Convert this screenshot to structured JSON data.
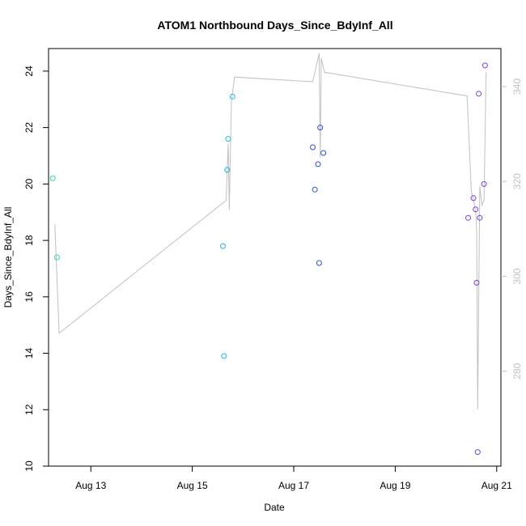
{
  "chart_data": {
    "type": "scatter",
    "title": "ATOM1 Northbound Days_Since_BdyInf_All",
    "xlabel": "Date",
    "ylabel": "Days_Since_BdyInf_All",
    "x_ticks": [
      "Aug 13",
      "Aug 15",
      "Aug 17",
      "Aug 19",
      "Aug 21"
    ],
    "x_tick_dates": [
      "2024-08-13",
      "2024-08-15",
      "2024-08-17",
      "2024-08-19",
      "2024-08-21"
    ],
    "xlim": [
      "2024-08-12T04:00",
      "2024-08-21T02:00"
    ],
    "ylim": [
      10,
      24.8
    ],
    "y_ticks": [
      10,
      12,
      14,
      16,
      18,
      20,
      22,
      24
    ],
    "y2lim": [
      260,
      348
    ],
    "y2_ticks": [
      280,
      300,
      320,
      340
    ],
    "grid": false,
    "colors": {
      "axis": "#000000",
      "secondary_line": "#c0c0c0",
      "secondary_axis": "#c0c0c0"
    },
    "points": [
      {
        "x": "2024-08-12T06:00",
        "y": 20.2,
        "color": "#2edb9e"
      },
      {
        "x": "2024-08-12T08:00",
        "y": 17.4,
        "color": "#2edb9e"
      },
      {
        "x": "2024-08-15T14:30",
        "y": 17.8,
        "color": "#22b7e6"
      },
      {
        "x": "2024-08-15T15:00",
        "y": 13.9,
        "color": "#22b7e6"
      },
      {
        "x": "2024-08-15T16:30",
        "y": 20.5,
        "color": "#22b7e6"
      },
      {
        "x": "2024-08-15T17:00",
        "y": 21.6,
        "color": "#22b7e6"
      },
      {
        "x": "2024-08-15T19:00",
        "y": 23.1,
        "color": "#22b7e6"
      },
      {
        "x": "2024-08-17T09:00",
        "y": 21.3,
        "color": "#2a4fe0"
      },
      {
        "x": "2024-08-17T10:00",
        "y": 19.8,
        "color": "#2a4fe0"
      },
      {
        "x": "2024-08-17T11:30",
        "y": 20.7,
        "color": "#2a4fe0"
      },
      {
        "x": "2024-08-17T12:00",
        "y": 17.2,
        "color": "#2a4fe0"
      },
      {
        "x": "2024-08-17T12:30",
        "y": 22.0,
        "color": "#2a4fe0"
      },
      {
        "x": "2024-08-17T14:00",
        "y": 21.1,
        "color": "#2a4fe0"
      },
      {
        "x": "2024-08-20T10:30",
        "y": 18.8,
        "color": "#7a3fe6"
      },
      {
        "x": "2024-08-20T13:00",
        "y": 19.5,
        "color": "#7a3fe6"
      },
      {
        "x": "2024-08-20T14:00",
        "y": 19.1,
        "color": "#7a3fe6"
      },
      {
        "x": "2024-08-20T14:30",
        "y": 16.5,
        "color": "#7a3fe6"
      },
      {
        "x": "2024-08-20T15:00",
        "y": 10.5,
        "color": "#7a3fe6"
      },
      {
        "x": "2024-08-20T15:30",
        "y": 23.2,
        "color": "#7a3fe6"
      },
      {
        "x": "2024-08-20T16:00",
        "y": 18.8,
        "color": "#7a3fe6"
      },
      {
        "x": "2024-08-20T18:00",
        "y": 20.0,
        "color": "#7a3fe6"
      },
      {
        "x": "2024-08-20T18:30",
        "y": 24.2,
        "color": "#7a3fe6"
      }
    ],
    "secondary_line": [
      {
        "x": "2024-08-12T07:00",
        "y": 311
      },
      {
        "x": "2024-08-12T09:00",
        "y": 288
      },
      {
        "x": "2024-08-15T16:00",
        "y": 316
      },
      {
        "x": "2024-08-15T17:00",
        "y": 328
      },
      {
        "x": "2024-08-15T17:30",
        "y": 314
      },
      {
        "x": "2024-08-15T18:30",
        "y": 337
      },
      {
        "x": "2024-08-15T20:00",
        "y": 342
      },
      {
        "x": "2024-08-17T09:00",
        "y": 341
      },
      {
        "x": "2024-08-17T10:30",
        "y": 344
      },
      {
        "x": "2024-08-17T12:00",
        "y": 347
      },
      {
        "x": "2024-08-17T12:30",
        "y": 325
      },
      {
        "x": "2024-08-17T13:00",
        "y": 346
      },
      {
        "x": "2024-08-17T14:30",
        "y": 343
      },
      {
        "x": "2024-08-20T10:00",
        "y": 338
      },
      {
        "x": "2024-08-20T12:00",
        "y": 318
      },
      {
        "x": "2024-08-20T14:00",
        "y": 314
      },
      {
        "x": "2024-08-20T14:30",
        "y": 310
      },
      {
        "x": "2024-08-20T15:00",
        "y": 272
      },
      {
        "x": "2024-08-20T16:00",
        "y": 319
      },
      {
        "x": "2024-08-20T17:00",
        "y": 315
      },
      {
        "x": "2024-08-20T18:00",
        "y": 316
      },
      {
        "x": "2024-08-20T19:00",
        "y": 343
      }
    ]
  }
}
